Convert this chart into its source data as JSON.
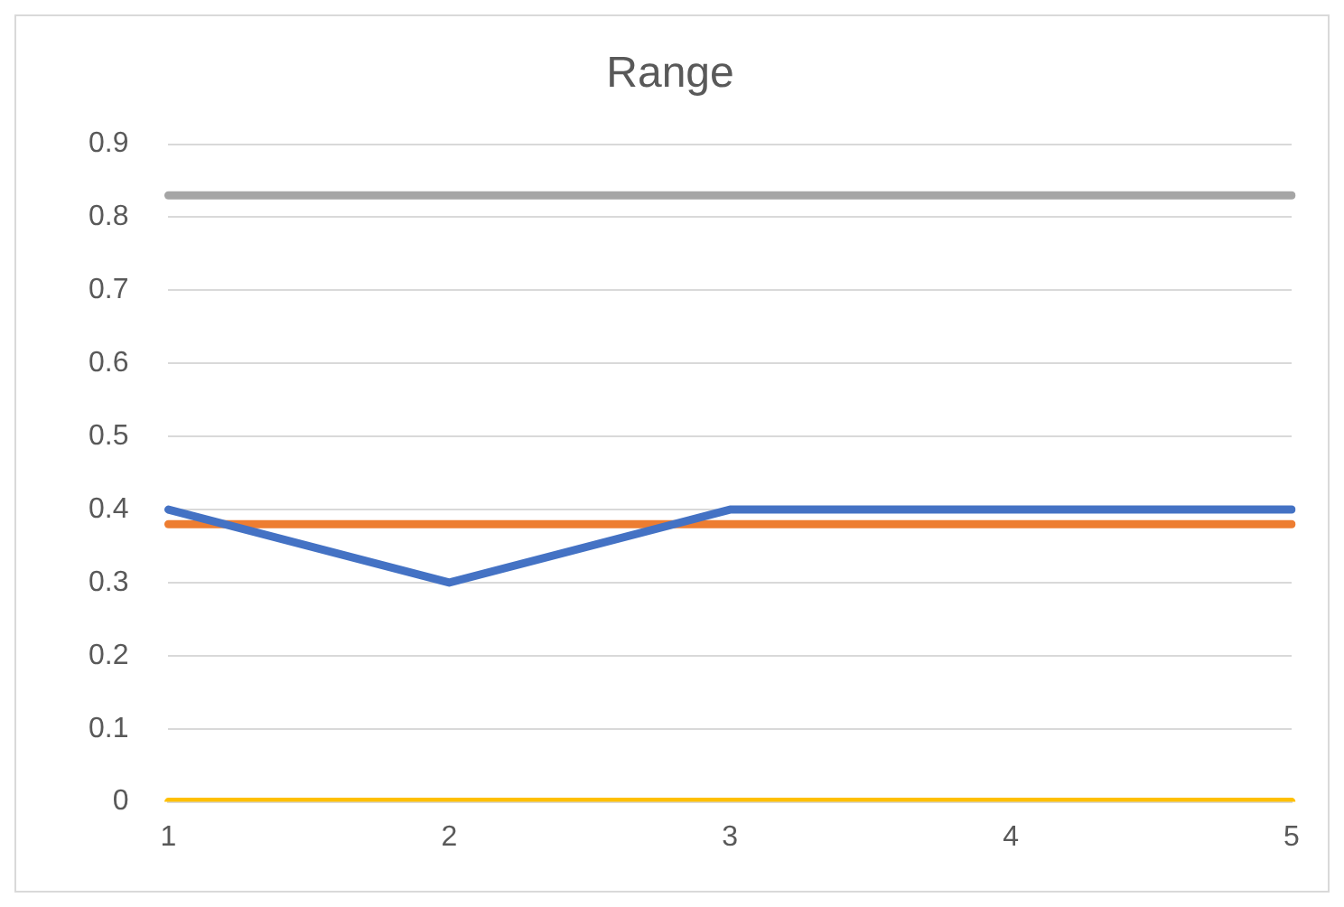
{
  "chart_data": {
    "type": "line",
    "title": "Range",
    "categories": [
      "1",
      "2",
      "3",
      "4",
      "5"
    ],
    "series": [
      {
        "color": "#4472c4",
        "values": [
          0.4,
          0.3,
          0.4,
          0.4,
          0.4
        ]
      },
      {
        "color": "#ed7d31",
        "values": [
          0.38,
          0.38,
          0.38,
          0.38,
          0.38
        ]
      },
      {
        "color": "#a5a5a5",
        "values": [
          0.83,
          0.83,
          0.83,
          0.83,
          0.83
        ]
      },
      {
        "color": "#ffc000",
        "values": [
          0,
          0,
          0,
          0,
          0
        ]
      }
    ],
    "ylim": [
      0,
      0.9
    ],
    "yticks": [
      0,
      0.1,
      0.2,
      0.3,
      0.4,
      0.5,
      0.6,
      0.7,
      0.8,
      0.9
    ],
    "grid": "y",
    "legend": false,
    "marker": "none",
    "line_style": "solid"
  }
}
